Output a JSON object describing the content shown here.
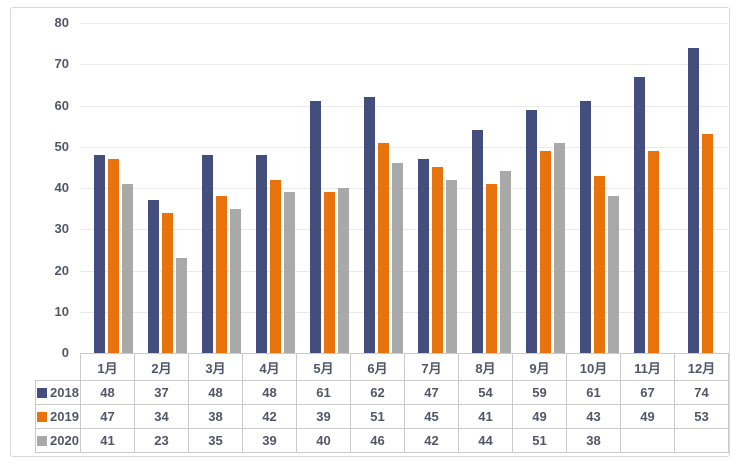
{
  "chart_data": {
    "type": "bar",
    "title": "",
    "categories": [
      "1月",
      "2月",
      "3月",
      "4月",
      "5月",
      "6月",
      "7月",
      "8月",
      "9月",
      "10月",
      "11月",
      "12月"
    ],
    "series": [
      {
        "name": "2018",
        "color": "#434E7C",
        "values": [
          48,
          37,
          48,
          48,
          61,
          62,
          47,
          54,
          59,
          61,
          67,
          74
        ]
      },
      {
        "name": "2019",
        "color": "#E8720C",
        "values": [
          47,
          34,
          38,
          42,
          39,
          51,
          45,
          41,
          49,
          43,
          49,
          53
        ]
      },
      {
        "name": "2020",
        "color": "#A9A9A9",
        "values": [
          41,
          23,
          35,
          39,
          40,
          46,
          42,
          44,
          51,
          38,
          null,
          null
        ]
      }
    ],
    "xlabel": "",
    "ylabel": "",
    "ylim": [
      0,
      80
    ],
    "yticks": [
      0,
      10,
      20,
      30,
      40,
      50,
      60,
      70,
      80
    ],
    "grid": true,
    "legend_position": "data-table-left"
  },
  "ui_colors": {
    "frame_border": "#d9d9d9",
    "gridline": "#e9e9e9",
    "table_border": "#cbcbcb",
    "text": "#515767",
    "background": "#ffffff"
  }
}
